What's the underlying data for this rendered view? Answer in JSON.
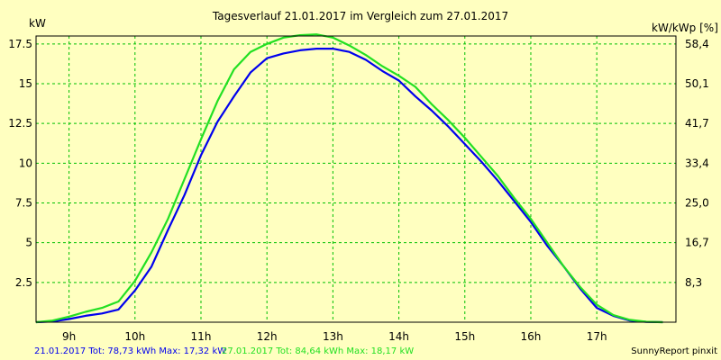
{
  "chart_data": {
    "type": "line",
    "title": "Tagesverlauf 21.01.2017 im Vergleich zum 27.01.2017",
    "ylabel_left": "kW",
    "ylabel_right": "kW/kWp [%]",
    "xlim": [
      8.5,
      18.2
    ],
    "ylim": [
      0,
      18
    ],
    "x_ticks": [
      {
        "value": 9,
        "label": "9h"
      },
      {
        "value": 10,
        "label": "10h"
      },
      {
        "value": 11,
        "label": "11h"
      },
      {
        "value": 12,
        "label": "12h"
      },
      {
        "value": 13,
        "label": "13h"
      },
      {
        "value": 14,
        "label": "14h"
      },
      {
        "value": 15,
        "label": "15h"
      },
      {
        "value": 16,
        "label": "16h"
      },
      {
        "value": 17,
        "label": "17h"
      }
    ],
    "y_ticks": [
      {
        "value": 2.5,
        "label": "2.5"
      },
      {
        "value": 5,
        "label": "5"
      },
      {
        "value": 7.5,
        "label": "7.5"
      },
      {
        "value": 10,
        "label": "10"
      },
      {
        "value": 12.5,
        "label": "12.5"
      },
      {
        "value": 15,
        "label": "15"
      },
      {
        "value": 17.5,
        "label": "17.5"
      }
    ],
    "y2_ticks": [
      {
        "value": 2.5,
        "label": "8,3"
      },
      {
        "value": 5,
        "label": "16,7"
      },
      {
        "value": 7.5,
        "label": "25,0"
      },
      {
        "value": 10,
        "label": "33,4"
      },
      {
        "value": 12.5,
        "label": "41,7"
      },
      {
        "value": 15,
        "label": "50,1"
      },
      {
        "value": 17.5,
        "label": "58,4"
      }
    ],
    "series": [
      {
        "name": "21.01.2017",
        "color": "#0000EE",
        "x": [
          8.5,
          8.75,
          9.0,
          9.25,
          9.5,
          9.75,
          10.0,
          10.25,
          10.5,
          10.75,
          11.0,
          11.25,
          11.5,
          11.75,
          12.0,
          12.25,
          12.5,
          12.75,
          13.0,
          13.25,
          13.5,
          13.75,
          14.0,
          14.25,
          14.5,
          14.75,
          15.0,
          15.25,
          15.5,
          15.75,
          16.0,
          16.25,
          16.5,
          16.75,
          17.0,
          17.25,
          17.5,
          17.75,
          18.0
        ],
        "y": [
          0,
          0.05,
          0.2,
          0.4,
          0.55,
          0.8,
          2.0,
          3.5,
          5.8,
          8.0,
          10.5,
          12.6,
          14.2,
          15.7,
          16.6,
          16.9,
          17.1,
          17.2,
          17.2,
          17.0,
          16.5,
          15.8,
          15.2,
          14.2,
          13.3,
          12.3,
          11.2,
          10.1,
          8.9,
          7.6,
          6.3,
          4.8,
          3.5,
          2.1,
          0.9,
          0.4,
          0.1,
          0.02,
          0
        ]
      },
      {
        "name": "27.01.2017",
        "color": "#22E022",
        "x": [
          8.5,
          8.75,
          9.0,
          9.25,
          9.5,
          9.75,
          10.0,
          10.25,
          10.5,
          10.75,
          11.0,
          11.25,
          11.5,
          11.75,
          12.0,
          12.25,
          12.5,
          12.75,
          13.0,
          13.25,
          13.5,
          13.75,
          14.0,
          14.25,
          14.5,
          14.75,
          15.0,
          15.25,
          15.5,
          15.75,
          16.0,
          16.25,
          16.5,
          16.75,
          17.0,
          17.25,
          17.5,
          17.75,
          18.0
        ],
        "y": [
          0,
          0.1,
          0.35,
          0.65,
          0.9,
          1.3,
          2.6,
          4.4,
          6.5,
          9.0,
          11.5,
          13.9,
          15.9,
          17.0,
          17.5,
          17.9,
          18.05,
          18.1,
          17.9,
          17.4,
          16.8,
          16.1,
          15.5,
          14.8,
          13.7,
          12.7,
          11.6,
          10.4,
          9.2,
          7.8,
          6.5,
          5.0,
          3.5,
          2.2,
          1.1,
          0.45,
          0.15,
          0.03,
          0
        ]
      }
    ]
  },
  "footer": {
    "series1_text": "21.01.2017 Tot: 78,73 kWh Max: 17,32 kW",
    "series2_text": "27.01.2017 Tot: 84,64 kWh Max: 18,17 kW",
    "brand": "SunnyReport pinxit"
  },
  "colors": {
    "background": "#FFFFC0",
    "grid": "#00C000",
    "series1": "#0000EE",
    "series2": "#22E022"
  }
}
